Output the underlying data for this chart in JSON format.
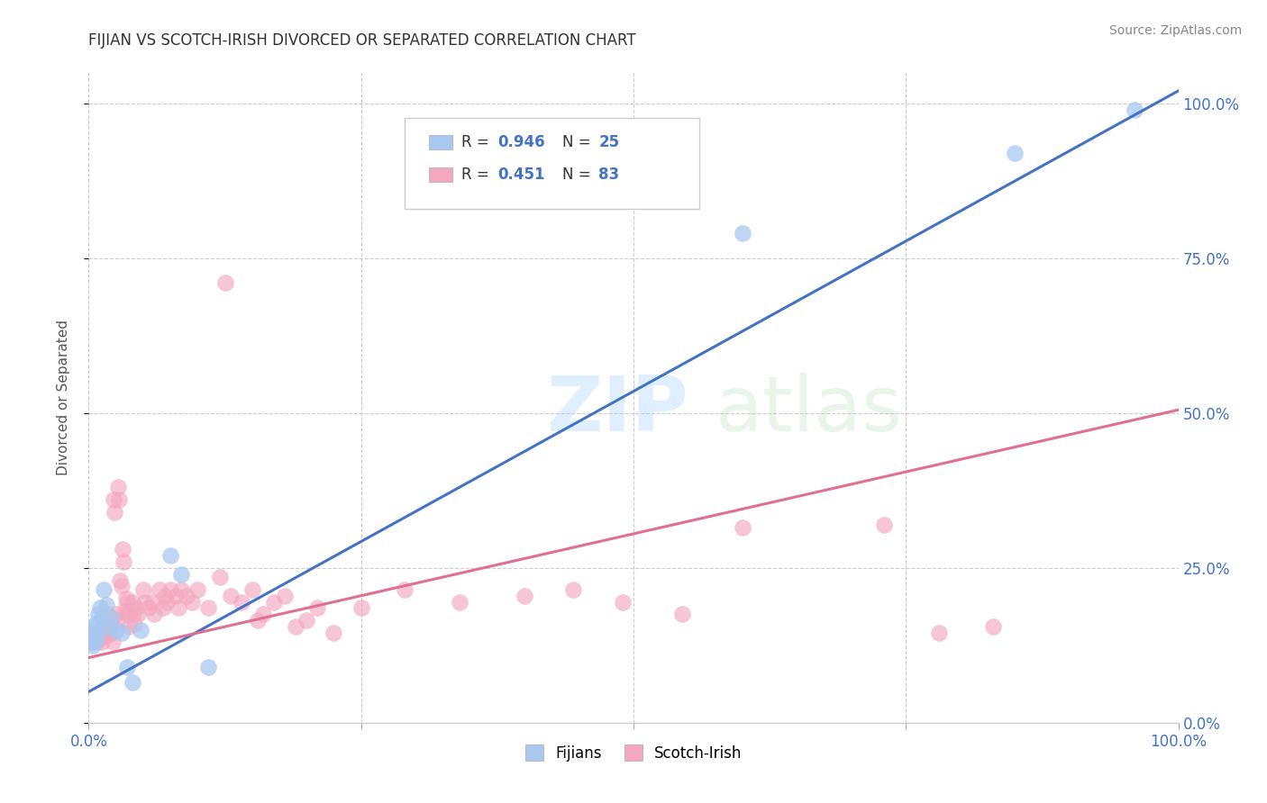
{
  "title": "FIJIAN VS SCOTCH-IRISH DIVORCED OR SEPARATED CORRELATION CHART",
  "source": "Source: ZipAtlas.com",
  "ylabel": "Divorced or Separated",
  "background_color": "#ffffff",
  "fijian_color": "#a8c8f0",
  "scotch_color": "#f4a8c0",
  "fijian_line_color": "#4472c4",
  "scotch_line_color": "#e07090",
  "legend_r_fijian": "0.946",
  "legend_n_fijian": "25",
  "legend_r_scotch": "0.451",
  "legend_n_scotch": "83",
  "legend_label_fijian": "Fijians",
  "legend_label_scotch": "Scotch-Irish",
  "r_color": "#4472c4",
  "fijian_points": [
    [
      0.002,
      0.13
    ],
    [
      0.003,
      0.145
    ],
    [
      0.004,
      0.125
    ],
    [
      0.005,
      0.155
    ],
    [
      0.006,
      0.16
    ],
    [
      0.007,
      0.135
    ],
    [
      0.008,
      0.145
    ],
    [
      0.009,
      0.175
    ],
    [
      0.01,
      0.185
    ],
    [
      0.012,
      0.17
    ],
    [
      0.014,
      0.215
    ],
    [
      0.016,
      0.19
    ],
    [
      0.018,
      0.155
    ],
    [
      0.02,
      0.17
    ],
    [
      0.025,
      0.15
    ],
    [
      0.03,
      0.145
    ],
    [
      0.035,
      0.09
    ],
    [
      0.04,
      0.065
    ],
    [
      0.048,
      0.15
    ],
    [
      0.075,
      0.27
    ],
    [
      0.085,
      0.24
    ],
    [
      0.11,
      0.09
    ],
    [
      0.6,
      0.79
    ],
    [
      0.85,
      0.92
    ],
    [
      0.96,
      0.99
    ]
  ],
  "scotch_points": [
    [
      0.002,
      0.13
    ],
    [
      0.003,
      0.14
    ],
    [
      0.004,
      0.13
    ],
    [
      0.005,
      0.145
    ],
    [
      0.006,
      0.135
    ],
    [
      0.007,
      0.13
    ],
    [
      0.008,
      0.145
    ],
    [
      0.009,
      0.135
    ],
    [
      0.01,
      0.15
    ],
    [
      0.011,
      0.14
    ],
    [
      0.012,
      0.13
    ],
    [
      0.013,
      0.155
    ],
    [
      0.014,
      0.14
    ],
    [
      0.015,
      0.165
    ],
    [
      0.016,
      0.14
    ],
    [
      0.017,
      0.175
    ],
    [
      0.018,
      0.15
    ],
    [
      0.019,
      0.145
    ],
    [
      0.02,
      0.165
    ],
    [
      0.021,
      0.145
    ],
    [
      0.022,
      0.13
    ],
    [
      0.023,
      0.36
    ],
    [
      0.024,
      0.34
    ],
    [
      0.025,
      0.175
    ],
    [
      0.026,
      0.165
    ],
    [
      0.027,
      0.38
    ],
    [
      0.028,
      0.36
    ],
    [
      0.029,
      0.23
    ],
    [
      0.03,
      0.22
    ],
    [
      0.031,
      0.28
    ],
    [
      0.032,
      0.26
    ],
    [
      0.033,
      0.18
    ],
    [
      0.034,
      0.2
    ],
    [
      0.035,
      0.195
    ],
    [
      0.036,
      0.175
    ],
    [
      0.037,
      0.155
    ],
    [
      0.038,
      0.18
    ],
    [
      0.04,
      0.195
    ],
    [
      0.041,
      0.175
    ],
    [
      0.042,
      0.16
    ],
    [
      0.043,
      0.185
    ],
    [
      0.045,
      0.175
    ],
    [
      0.05,
      0.215
    ],
    [
      0.052,
      0.195
    ],
    [
      0.055,
      0.185
    ],
    [
      0.058,
      0.195
    ],
    [
      0.06,
      0.175
    ],
    [
      0.065,
      0.215
    ],
    [
      0.068,
      0.185
    ],
    [
      0.07,
      0.205
    ],
    [
      0.072,
      0.195
    ],
    [
      0.075,
      0.215
    ],
    [
      0.08,
      0.205
    ],
    [
      0.082,
      0.185
    ],
    [
      0.085,
      0.215
    ],
    [
      0.09,
      0.205
    ],
    [
      0.095,
      0.195
    ],
    [
      0.1,
      0.215
    ],
    [
      0.11,
      0.185
    ],
    [
      0.12,
      0.235
    ],
    [
      0.125,
      0.71
    ],
    [
      0.13,
      0.205
    ],
    [
      0.14,
      0.195
    ],
    [
      0.15,
      0.215
    ],
    [
      0.155,
      0.165
    ],
    [
      0.16,
      0.175
    ],
    [
      0.17,
      0.195
    ],
    [
      0.18,
      0.205
    ],
    [
      0.19,
      0.155
    ],
    [
      0.2,
      0.165
    ],
    [
      0.21,
      0.185
    ],
    [
      0.225,
      0.145
    ],
    [
      0.25,
      0.185
    ],
    [
      0.29,
      0.215
    ],
    [
      0.34,
      0.195
    ],
    [
      0.4,
      0.205
    ],
    [
      0.445,
      0.215
    ],
    [
      0.49,
      0.195
    ],
    [
      0.545,
      0.175
    ],
    [
      0.6,
      0.315
    ],
    [
      0.73,
      0.32
    ],
    [
      0.78,
      0.145
    ],
    [
      0.83,
      0.155
    ]
  ],
  "fijian_line_x": [
    0.0,
    1.0
  ],
  "fijian_line_y": [
    0.05,
    1.02
  ],
  "scotch_line_x": [
    0.0,
    1.0
  ],
  "scotch_line_y": [
    0.105,
    0.505
  ],
  "xlim": [
    0.0,
    1.0
  ],
  "ylim": [
    0.0,
    1.05
  ],
  "xticks": [
    0.0,
    0.25,
    0.5,
    0.75,
    1.0
  ],
  "yticks": [
    0.0,
    0.25,
    0.5,
    0.75,
    1.0
  ],
  "right_ytick_labels": [
    "0.0%",
    "25.0%",
    "50.0%",
    "75.0%",
    "100.0%"
  ],
  "bottom_xtick_labels": [
    "0.0%",
    "",
    "",
    "",
    "100.0%"
  ]
}
